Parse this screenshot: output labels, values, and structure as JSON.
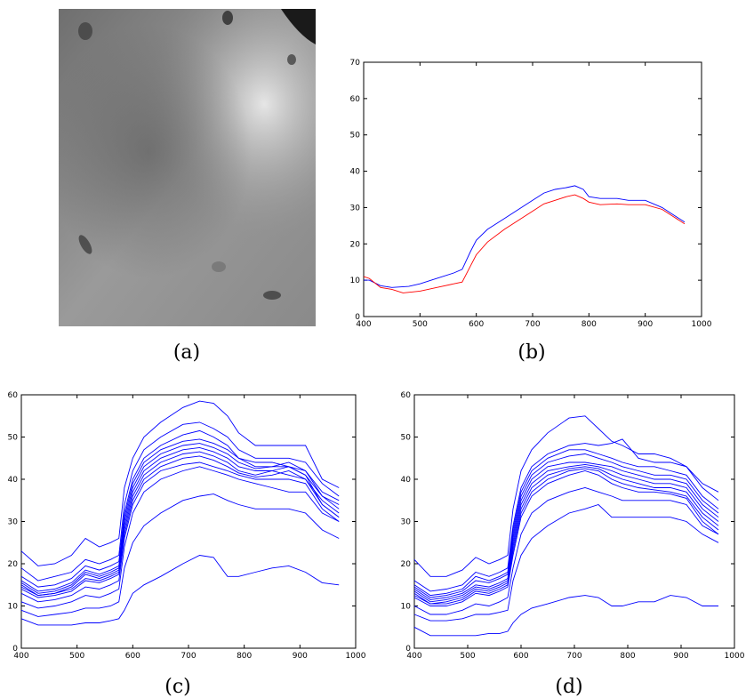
{
  "captions": {
    "a": "(a)",
    "b": "(b)",
    "c": "(c)",
    "d": "(d)"
  },
  "image_a": {
    "description": "grayscale hyperspectral band image",
    "tone": "#8a8a8a"
  },
  "chart_data": [
    {
      "id": "b",
      "type": "line",
      "title": "",
      "xlabel": "",
      "ylabel": "",
      "xlim": [
        400,
        1000
      ],
      "ylim": [
        0,
        70
      ],
      "xticks": [
        400,
        500,
        600,
        700,
        800,
        900,
        1000
      ],
      "yticks": [
        0,
        10,
        20,
        30,
        40,
        50,
        60,
        70
      ],
      "series": [
        {
          "color": "#0000ff",
          "x": [
            400,
            410,
            430,
            450,
            480,
            500,
            530,
            560,
            575,
            590,
            600,
            620,
            650,
            700,
            720,
            740,
            760,
            775,
            790,
            800,
            820,
            850,
            870,
            900,
            930,
            950,
            970
          ],
          "y": [
            10,
            10,
            8.5,
            8,
            8.3,
            9,
            10.5,
            12,
            13,
            18,
            21,
            24,
            27,
            32,
            34,
            35,
            35.5,
            36,
            35,
            33,
            32.5,
            32.5,
            32,
            32,
            30,
            28,
            26
          ]
        },
        {
          "color": "#ff0000",
          "x": [
            400,
            410,
            430,
            450,
            470,
            500,
            530,
            560,
            575,
            590,
            600,
            620,
            650,
            700,
            720,
            740,
            760,
            775,
            790,
            800,
            820,
            850,
            870,
            900,
            930,
            950,
            970
          ],
          "y": [
            11,
            10.5,
            8,
            7.5,
            6.5,
            7,
            8,
            9,
            9.5,
            14,
            17,
            20.5,
            24,
            29,
            31,
            32,
            33,
            33.5,
            32.5,
            31.5,
            30.8,
            31,
            30.8,
            30.8,
            29.5,
            27.5,
            25.5
          ]
        }
      ]
    },
    {
      "id": "c",
      "type": "line",
      "title": "",
      "xlabel": "",
      "ylabel": "",
      "xlim": [
        400,
        1000
      ],
      "ylim": [
        0,
        60
      ],
      "xticks": [
        400,
        500,
        600,
        700,
        800,
        900,
        1000
      ],
      "yticks": [
        0,
        10,
        20,
        30,
        40,
        50,
        60
      ],
      "x": [
        400,
        430,
        460,
        490,
        515,
        540,
        560,
        575,
        585,
        600,
        620,
        650,
        690,
        720,
        745,
        770,
        790,
        820,
        850,
        880,
        910,
        940,
        970
      ],
      "series": [
        {
          "color": "#0000ff",
          "values": [
            23,
            19.5,
            20,
            22,
            26,
            24,
            25,
            26,
            38,
            45,
            50,
            53.5,
            57,
            58.5,
            58,
            55,
            51,
            48,
            48,
            48,
            48,
            40,
            38
          ]
        },
        {
          "color": "#0000ff",
          "values": [
            19,
            16,
            17,
            18,
            21,
            20,
            21,
            22,
            34,
            42,
            47,
            50,
            53,
            53.5,
            52,
            50,
            47,
            45,
            45,
            45,
            44,
            39,
            36
          ]
        },
        {
          "color": "#0000ff",
          "values": [
            17,
            14.5,
            15,
            16.5,
            19.5,
            18.5,
            19.5,
            20.5,
            32,
            40,
            45,
            48,
            50.5,
            51.5,
            50,
            48,
            45,
            44,
            44,
            43,
            42,
            37,
            35
          ]
        },
        {
          "color": "#0000ff",
          "values": [
            16,
            13.5,
            14,
            15.5,
            18.5,
            17.5,
            18.5,
            19.5,
            31,
            39,
            44,
            47,
            49,
            49.5,
            48.5,
            47,
            45,
            43,
            43,
            43,
            41,
            36,
            34
          ]
        },
        {
          "color": "#0000ff",
          "values": [
            15.5,
            13,
            13.5,
            15,
            18,
            17,
            18,
            19,
            30,
            38,
            43,
            46,
            48,
            48.5,
            47.5,
            46,
            44,
            42.5,
            43,
            44,
            42,
            36,
            33
          ]
        },
        {
          "color": "#0000ff",
          "values": [
            15,
            12.5,
            13,
            14.5,
            17.5,
            16.5,
            17.5,
            18.5,
            29,
            37,
            42,
            45,
            47,
            47.5,
            46.5,
            45,
            43,
            42,
            42,
            41,
            40,
            35,
            32
          ]
        },
        {
          "color": "#0000ff",
          "values": [
            14.5,
            12.5,
            13,
            14,
            16.5,
            16,
            17,
            18,
            28,
            36,
            41,
            44,
            46,
            46.5,
            45.5,
            44,
            42,
            41,
            42,
            43,
            41,
            34,
            31
          ]
        },
        {
          "color": "#0000ff",
          "values": [
            14,
            12,
            12.5,
            13.5,
            16,
            15.5,
            16.5,
            17.5,
            27,
            35,
            40,
            43,
            45,
            45.5,
            44.5,
            43,
            41.5,
            40.5,
            41,
            42,
            40,
            34,
            31
          ]
        },
        {
          "color": "#0000ff",
          "values": [
            13,
            11,
            11.5,
            12.5,
            14.5,
            14,
            15,
            16,
            26,
            34,
            39,
            42,
            43.5,
            44,
            43,
            42,
            41,
            40,
            40,
            40,
            39,
            33,
            30
          ]
        },
        {
          "color": "#0000ff",
          "values": [
            11,
            9.5,
            10,
            11,
            12.5,
            12,
            13,
            14,
            24,
            32,
            37,
            40,
            42,
            43,
            42,
            41,
            40,
            39,
            38,
            37,
            37,
            32,
            30
          ]
        },
        {
          "color": "#0000ff",
          "values": [
            9,
            7.5,
            8,
            8.5,
            9.5,
            9.5,
            10,
            11,
            19,
            25,
            29,
            32,
            35,
            36,
            36.5,
            35,
            34,
            33,
            33,
            33,
            32,
            28,
            26
          ]
        },
        {
          "color": "#0000ff",
          "values": [
            7,
            5.5,
            5.5,
            5.5,
            6,
            6,
            6.5,
            7,
            9,
            13,
            15,
            17,
            20,
            22,
            21.5,
            17,
            17,
            18,
            19,
            19.5,
            18,
            15.5,
            15
          ]
        }
      ]
    },
    {
      "id": "d",
      "type": "line",
      "title": "",
      "xlabel": "",
      "ylabel": "",
      "xlim": [
        400,
        1000
      ],
      "ylim": [
        0,
        60
      ],
      "xticks": [
        400,
        500,
        600,
        700,
        800,
        900,
        1000
      ],
      "yticks": [
        0,
        10,
        20,
        30,
        40,
        50,
        60
      ],
      "x": [
        400,
        430,
        460,
        490,
        515,
        540,
        560,
        575,
        585,
        600,
        620,
        650,
        690,
        720,
        745,
        770,
        790,
        820,
        850,
        880,
        910,
        940,
        970
      ],
      "series": [
        {
          "color": "#0000ff",
          "values": [
            21,
            17,
            17,
            18.5,
            21.5,
            20,
            21,
            22,
            33,
            42,
            47,
            51,
            54.5,
            55,
            52,
            49,
            48,
            46,
            46,
            45,
            43,
            39,
            37
          ]
        },
        {
          "color": "#0000ff",
          "values": [
            16,
            13.5,
            14,
            15,
            18,
            17,
            18,
            19,
            29,
            38,
            43,
            46,
            48,
            48.5,
            48,
            48.5,
            49.5,
            45,
            44,
            44,
            43,
            38,
            35
          ]
        },
        {
          "color": "#0000ff",
          "values": [
            15,
            12.5,
            13,
            14,
            17,
            16,
            17,
            18,
            28,
            37,
            42,
            45,
            47,
            47,
            46,
            45,
            44,
            43,
            43,
            42,
            41,
            36,
            33
          ]
        },
        {
          "color": "#0000ff",
          "values": [
            14.5,
            12,
            12.5,
            13.5,
            16,
            15.5,
            16.5,
            17.5,
            27,
            36,
            41,
            44,
            45.5,
            46,
            45,
            44,
            43,
            42,
            41,
            41,
            40,
            35,
            32
          ]
        },
        {
          "color": "#0000ff",
          "values": [
            14,
            11.5,
            12,
            13,
            15,
            14.5,
            15.5,
            16.5,
            26,
            35,
            40,
            43,
            44,
            44,
            43.5,
            43,
            42,
            41,
            40,
            40,
            39,
            34,
            31
          ]
        },
        {
          "color": "#0000ff",
          "values": [
            13.5,
            11,
            11.5,
            12.5,
            14.5,
            14,
            15,
            16,
            25,
            34,
            39,
            42,
            43,
            43.5,
            43,
            42,
            41,
            40,
            39,
            39,
            38,
            33,
            30
          ]
        },
        {
          "color": "#0000ff",
          "values": [
            13,
            10.5,
            11,
            12,
            14,
            13.5,
            14.5,
            15.5,
            24,
            33,
            38,
            41,
            42.5,
            43,
            42.5,
            41,
            40,
            39,
            38,
            38,
            37,
            32,
            29
          ]
        },
        {
          "color": "#0000ff",
          "values": [
            12.5,
            10.5,
            10.5,
            11.5,
            13.5,
            13,
            14,
            15,
            23,
            32,
            37,
            40,
            42,
            42.5,
            42,
            40,
            39,
            38,
            37.5,
            37,
            36,
            31,
            28
          ]
        },
        {
          "color": "#0000ff",
          "values": [
            12,
            10,
            10,
            11,
            13,
            12.5,
            13.5,
            14.5,
            22,
            31,
            36,
            39,
            41,
            42,
            41,
            39,
            38,
            37,
            37,
            36.5,
            35.5,
            30,
            27
          ]
        },
        {
          "color": "#0000ff",
          "values": [
            10,
            8,
            8,
            9,
            10.5,
            10,
            11,
            12,
            19,
            27,
            32,
            35,
            37,
            38,
            37,
            36,
            35,
            35,
            35,
            35,
            34,
            29,
            27
          ]
        },
        {
          "color": "#0000ff",
          "values": [
            8,
            6.5,
            6.5,
            7,
            8,
            8,
            8.5,
            9,
            16,
            22,
            26,
            29,
            32,
            33,
            34,
            31,
            31,
            31,
            31,
            31,
            30,
            27,
            25
          ]
        },
        {
          "color": "#0000ff",
          "values": [
            5,
            3,
            3,
            3,
            3,
            3.5,
            3.5,
            4,
            6,
            8,
            9.5,
            10.5,
            12,
            12.5,
            12,
            10,
            10,
            11,
            11,
            12.5,
            12,
            10,
            10
          ]
        }
      ]
    }
  ]
}
